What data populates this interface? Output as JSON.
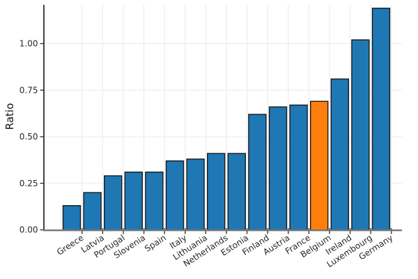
{
  "chart_data": {
    "type": "bar",
    "title": "",
    "xlabel": "",
    "ylabel": "Ratio",
    "categories": [
      "Greece",
      "Latvia",
      "Portugal",
      "Slovenia",
      "Spain",
      "Italy",
      "Lithuania",
      "Netherlands",
      "Estonia",
      "Finland",
      "Austria",
      "France",
      "Belgium",
      "Ireland",
      "Luxembourg",
      "Germany"
    ],
    "values": [
      0.13,
      0.2,
      0.29,
      0.31,
      0.31,
      0.37,
      0.38,
      0.41,
      0.41,
      0.62,
      0.66,
      0.67,
      0.69,
      0.81,
      1.02,
      1.19
    ],
    "highlight_category": "Belgium",
    "highlight_index": 12,
    "ytick_labels": [
      "0.00",
      "0.25",
      "0.50",
      "0.75",
      "1.00"
    ],
    "ylim": [
      0,
      1.21
    ],
    "grid": true,
    "legend": "none",
    "xtick_rotation_deg": 33,
    "colors": {
      "bar": "#1f77b4",
      "highlight_bar": "#ff7f0e",
      "bar_edge": "#1a1a1a",
      "grid": "#e9e9e9",
      "axis_line": "#757575",
      "spine": "#2e2e2e",
      "tick_mark": "#333333",
      "tick_text": "#262626",
      "axis_label_text": "#111111",
      "background": "#ffffff"
    }
  }
}
